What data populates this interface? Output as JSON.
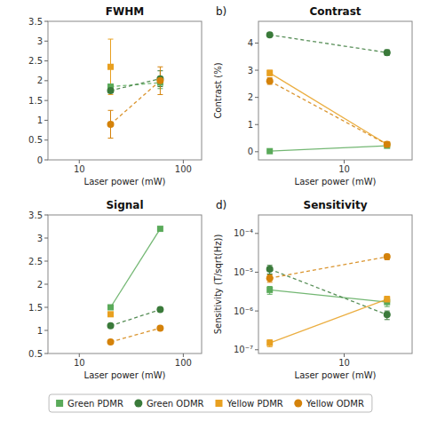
{
  "chart_data": [
    {
      "type": "line",
      "title": "FWHM",
      "xlabel": "Laser power (mW)",
      "log": "x",
      "grid": false,
      "legend": "bottom",
      "xlim": [
        5,
        150
      ],
      "xticks": [
        10,
        100
      ],
      "ylim": [
        0,
        3.5
      ],
      "yticks": [
        0,
        0.5,
        1,
        1.5,
        2,
        2.5,
        3,
        3.5
      ],
      "series": [
        {
          "name": "Green PDMR",
          "color": "#5aaa5a",
          "marker": "square",
          "line_style": "dashed",
          "x": [
            20,
            60
          ],
          "values": [
            1.85,
            1.95
          ],
          "yerr": [
            0.05,
            0.15
          ]
        },
        {
          "name": "Green ODMR",
          "color": "#3a7a3a",
          "marker": "circle",
          "line_style": "dashed",
          "x": [
            20,
            60
          ],
          "values": [
            1.75,
            2.05
          ],
          "yerr": [
            0.05,
            0.2
          ]
        },
        {
          "name": "Yellow PDMR",
          "color": "#e8a020",
          "marker": "square",
          "line_style": "dashed",
          "x": [
            20
          ],
          "values": [
            2.35
          ],
          "yerr": [
            0.7
          ]
        },
        {
          "name": "Yellow ODMR",
          "color": "#d4820a",
          "marker": "circle",
          "line_style": "dashed",
          "x": [
            20,
            60
          ],
          "values": [
            0.9,
            2.0
          ],
          "yerr": [
            0.35,
            0.35
          ]
        }
      ]
    },
    {
      "type": "line",
      "title": "Contrast",
      "annotation": "b)",
      "xlabel": "Laser power (mW)",
      "ylabel": "Contrast (%)",
      "log": "x",
      "grid": false,
      "xlim": [
        2.5,
        30
      ],
      "xticks": [
        10
      ],
      "ylim": [
        -0.3,
        4.8
      ],
      "yticks": [
        0,
        1,
        2,
        3,
        4
      ],
      "series": [
        {
          "name": "Green PDMR",
          "color": "#5aaa5a",
          "marker": "square",
          "line_style": "solid",
          "x": [
            3,
            20
          ],
          "values": [
            0.02,
            0.22
          ],
          "yerr": [
            0.02,
            0.04
          ]
        },
        {
          "name": "Green ODMR",
          "color": "#3a7a3a",
          "marker": "circle",
          "line_style": "dashed",
          "x": [
            3,
            20
          ],
          "values": [
            4.3,
            3.65
          ],
          "yerr": [
            0.07,
            0.1
          ]
        },
        {
          "name": "Yellow PDMR",
          "color": "#e8a020",
          "marker": "square",
          "line_style": "solid",
          "x": [
            3,
            20
          ],
          "values": [
            2.9,
            0.27
          ],
          "yerr": [
            0.1,
            0.04
          ]
        },
        {
          "name": "Yellow ODMR",
          "color": "#d4820a",
          "marker": "circle",
          "line_style": "dashed",
          "x": [
            3,
            20
          ],
          "values": [
            2.6,
            0.27
          ],
          "yerr": [
            0.12,
            0.04
          ]
        }
      ]
    },
    {
      "type": "line",
      "title": "Signal",
      "xlabel": "Laser power (mW)",
      "log": "x",
      "grid": false,
      "xlim": [
        5,
        150
      ],
      "xticks": [
        10,
        100
      ],
      "ylim": [
        0.5,
        3.5
      ],
      "yticks": [
        0.5,
        1,
        1.5,
        2,
        2.5,
        3,
        3.5
      ],
      "series": [
        {
          "name": "Green PDMR",
          "color": "#5aaa5a",
          "marker": "square",
          "line_style": "solid",
          "x": [
            20,
            60
          ],
          "values": [
            1.5,
            3.2
          ]
        },
        {
          "name": "Green ODMR",
          "color": "#3a7a3a",
          "marker": "circle",
          "line_style": "dashed",
          "x": [
            20,
            60
          ],
          "values": [
            1.1,
            1.45
          ]
        },
        {
          "name": "Yellow PDMR",
          "color": "#e8a020",
          "marker": "square",
          "line_style": "none",
          "x": [
            20
          ],
          "values": [
            1.35
          ]
        },
        {
          "name": "Yellow ODMR",
          "color": "#d4820a",
          "marker": "circle",
          "line_style": "dashed",
          "x": [
            20,
            60
          ],
          "values": [
            0.75,
            1.05
          ]
        }
      ]
    },
    {
      "type": "line",
      "title": "Sensitivity",
      "annotation": "d)",
      "xlabel": "Laser power (mW)",
      "ylabel": "Sensitivity (T/sqrt(Hz))",
      "log": true,
      "grid": false,
      "xlim": [
        2.5,
        30
      ],
      "xticks": [
        10
      ],
      "ylim": [
        8e-08,
        0.0003
      ],
      "yticks": [
        {
          "value": 1e-07,
          "label": "10⁻⁷"
        },
        {
          "value": 1e-06,
          "label": "10⁻⁶"
        },
        {
          "value": 1e-05,
          "label": "10⁻⁵"
        },
        {
          "value": 0.0001,
          "label": "10⁻⁴"
        }
      ],
      "series": [
        {
          "name": "Green PDMR",
          "color": "#5aaa5a",
          "marker": "square",
          "line_style": "solid",
          "x": [
            3,
            20
          ],
          "values": [
            3.5e-06,
            1.7e-06
          ],
          "yerr_low": [
            8e-07,
            4e-07
          ],
          "yerr_high": [
            8e-07,
            4e-07
          ]
        },
        {
          "name": "Green ODMR",
          "color": "#3a7a3a",
          "marker": "circle",
          "line_style": "dashed",
          "x": [
            3,
            20
          ],
          "values": [
            1.2e-05,
            8e-07
          ],
          "yerr_low": [
            3e-06,
            2e-07
          ],
          "yerr_high": [
            3e-06,
            2e-07
          ]
        },
        {
          "name": "Yellow PDMR",
          "color": "#e8a020",
          "marker": "square",
          "line_style": "solid",
          "x": [
            3,
            20
          ],
          "values": [
            1.5e-07,
            2e-06
          ],
          "yerr_low": [
            3e-08,
            4e-07
          ],
          "yerr_high": [
            3e-08,
            4e-07
          ]
        },
        {
          "name": "Yellow ODMR",
          "color": "#d4820a",
          "marker": "circle",
          "line_style": "dashed",
          "x": [
            3,
            20
          ],
          "values": [
            7e-06,
            2.5e-05
          ],
          "yerr_low": [
            1.5e-06,
            4e-06
          ],
          "yerr_high": [
            1.5e-06,
            4e-06
          ]
        }
      ]
    }
  ]
}
